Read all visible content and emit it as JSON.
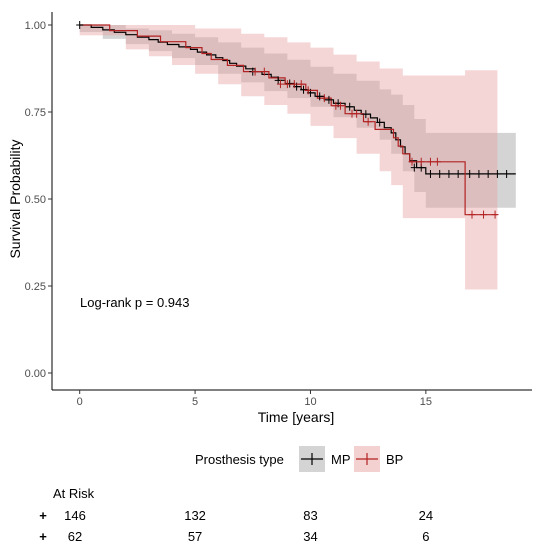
{
  "chart_data": {
    "type": "line",
    "subtype": "kaplan-meier",
    "xlabel": "Time [years]",
    "ylabel": "Survival Probability",
    "xlim": [
      -1.2,
      19.6
    ],
    "ylim": [
      0,
      1.0
    ],
    "x_ticks": [
      0,
      5,
      10,
      15
    ],
    "y_ticks": [
      0.0,
      0.25,
      0.5,
      0.75,
      1.0
    ],
    "y_tick_labels": [
      "0.00",
      "0.25",
      "0.50",
      "0.75",
      "1.00"
    ],
    "grid": false,
    "annotation": "Log-rank p = 0.943",
    "legend": {
      "title": "Prosthesis type",
      "position": "bottom",
      "entries": [
        {
          "label": "MP",
          "color": "#000000",
          "band_color": "#a9a9a9"
        },
        {
          "label": "BP",
          "color": "#b22222",
          "band_color": "#e9a3a3"
        }
      ]
    },
    "series": [
      {
        "name": "MP",
        "color": "#000000",
        "band_color": "#a9a9a9",
        "steps": [
          [
            0,
            1.0
          ],
          [
            0.5,
            0.993
          ],
          [
            1.0,
            0.986
          ],
          [
            1.5,
            0.979
          ],
          [
            2.0,
            0.972
          ],
          [
            2.5,
            0.965
          ],
          [
            3.0,
            0.958
          ],
          [
            3.4,
            0.951
          ],
          [
            3.8,
            0.944
          ],
          [
            4.3,
            0.937
          ],
          [
            4.8,
            0.93
          ],
          [
            5.1,
            0.922
          ],
          [
            5.5,
            0.914
          ],
          [
            5.9,
            0.906
          ],
          [
            6.2,
            0.898
          ],
          [
            6.5,
            0.89
          ],
          [
            6.8,
            0.882
          ],
          [
            7.2,
            0.874
          ],
          [
            7.6,
            0.866
          ],
          [
            7.9,
            0.858
          ],
          [
            8.3,
            0.85
          ],
          [
            8.6,
            0.841
          ],
          [
            8.9,
            0.832
          ],
          [
            9.3,
            0.823
          ],
          [
            9.6,
            0.814
          ],
          [
            9.9,
            0.805
          ],
          [
            10.2,
            0.795
          ],
          [
            10.6,
            0.785
          ],
          [
            11.0,
            0.775
          ],
          [
            11.5,
            0.765
          ],
          [
            11.9,
            0.755
          ],
          [
            12.2,
            0.744
          ],
          [
            12.6,
            0.733
          ],
          [
            12.9,
            0.72
          ],
          [
            13.2,
            0.705
          ],
          [
            13.5,
            0.69
          ],
          [
            13.7,
            0.67
          ],
          [
            13.9,
            0.65
          ],
          [
            14.1,
            0.63
          ],
          [
            14.3,
            0.61
          ],
          [
            14.6,
            0.59
          ],
          [
            15.0,
            0.572
          ],
          [
            18.9,
            0.572
          ]
        ],
        "upper": [
          [
            0,
            1.0
          ],
          [
            1.0,
            1.0
          ],
          [
            2.0,
            0.99
          ],
          [
            3.0,
            0.985
          ],
          [
            4.0,
            0.975
          ],
          [
            5.0,
            0.965
          ],
          [
            6.0,
            0.95
          ],
          [
            7.0,
            0.935
          ],
          [
            8.0,
            0.918
          ],
          [
            9.0,
            0.9
          ],
          [
            10.0,
            0.88
          ],
          [
            11.0,
            0.86
          ],
          [
            12.0,
            0.84
          ],
          [
            13.0,
            0.815
          ],
          [
            13.5,
            0.8
          ],
          [
            14.0,
            0.77
          ],
          [
            14.5,
            0.73
          ],
          [
            15.0,
            0.69
          ],
          [
            18.9,
            0.69
          ]
        ],
        "lower": [
          [
            0,
            0.98
          ],
          [
            1.0,
            0.96
          ],
          [
            2.0,
            0.945
          ],
          [
            3.0,
            0.925
          ],
          [
            4.0,
            0.905
          ],
          [
            5.0,
            0.885
          ],
          [
            6.0,
            0.86
          ],
          [
            7.0,
            0.835
          ],
          [
            8.0,
            0.81
          ],
          [
            9.0,
            0.79
          ],
          [
            10.0,
            0.765
          ],
          [
            11.0,
            0.735
          ],
          [
            12.0,
            0.705
          ],
          [
            13.0,
            0.67
          ],
          [
            13.5,
            0.63
          ],
          [
            14.0,
            0.58
          ],
          [
            14.5,
            0.52
          ],
          [
            15.0,
            0.475
          ],
          [
            18.9,
            0.475
          ]
        ],
        "censored": [
          [
            0,
            1.0
          ],
          [
            7.5,
            0.866
          ],
          [
            8.6,
            0.841
          ],
          [
            9.1,
            0.832
          ],
          [
            9.4,
            0.823
          ],
          [
            9.7,
            0.814
          ],
          [
            10.0,
            0.805
          ],
          [
            10.4,
            0.795
          ],
          [
            10.8,
            0.785
          ],
          [
            11.2,
            0.775
          ],
          [
            11.7,
            0.765
          ],
          [
            12.4,
            0.744
          ],
          [
            13.0,
            0.72
          ],
          [
            14.5,
            0.59
          ],
          [
            14.8,
            0.59
          ],
          [
            15.2,
            0.572
          ],
          [
            15.6,
            0.572
          ],
          [
            16.0,
            0.572
          ],
          [
            16.4,
            0.572
          ],
          [
            16.9,
            0.572
          ],
          [
            17.3,
            0.572
          ],
          [
            17.7,
            0.572
          ],
          [
            18.1,
            0.572
          ],
          [
            18.5,
            0.572
          ]
        ]
      },
      {
        "name": "BP",
        "color": "#b22222",
        "band_color": "#e9a3a3",
        "steps": [
          [
            0,
            1.0
          ],
          [
            1.3,
            0.984
          ],
          [
            2.5,
            0.968
          ],
          [
            3.5,
            0.952
          ],
          [
            4.6,
            0.935
          ],
          [
            5.3,
            0.918
          ],
          [
            5.7,
            0.901
          ],
          [
            6.4,
            0.884
          ],
          [
            7.1,
            0.866
          ],
          [
            8.2,
            0.848
          ],
          [
            8.9,
            0.83
          ],
          [
            9.8,
            0.812
          ],
          [
            10.3,
            0.79
          ],
          [
            10.9,
            0.768
          ],
          [
            11.5,
            0.745
          ],
          [
            12.3,
            0.722
          ],
          [
            12.8,
            0.7
          ],
          [
            13.6,
            0.676
          ],
          [
            13.8,
            0.652
          ],
          [
            14.0,
            0.63
          ],
          [
            14.3,
            0.607
          ],
          [
            16.7,
            0.455
          ],
          [
            18.1,
            0.455
          ]
        ],
        "upper": [
          [
            0,
            1.0
          ],
          [
            3.0,
            1.0
          ],
          [
            5.0,
            0.99
          ],
          [
            7.0,
            0.975
          ],
          [
            8.0,
            0.965
          ],
          [
            9.0,
            0.95
          ],
          [
            10.0,
            0.935
          ],
          [
            11.0,
            0.915
          ],
          [
            12.0,
            0.895
          ],
          [
            13.0,
            0.875
          ],
          [
            14.0,
            0.855
          ],
          [
            15.0,
            0.855
          ],
          [
            16.6,
            0.855
          ],
          [
            16.7,
            0.87
          ],
          [
            18.1,
            0.87
          ]
        ],
        "lower": [
          [
            0,
            0.97
          ],
          [
            2.0,
            0.93
          ],
          [
            3.0,
            0.91
          ],
          [
            4.0,
            0.885
          ],
          [
            5.0,
            0.86
          ],
          [
            6.0,
            0.83
          ],
          [
            7.0,
            0.795
          ],
          [
            8.0,
            0.77
          ],
          [
            9.0,
            0.745
          ],
          [
            10.0,
            0.71
          ],
          [
            11.0,
            0.675
          ],
          [
            12.0,
            0.63
          ],
          [
            13.0,
            0.58
          ],
          [
            13.5,
            0.54
          ],
          [
            14.0,
            0.445
          ],
          [
            16.6,
            0.445
          ],
          [
            16.7,
            0.24
          ],
          [
            18.1,
            0.24
          ]
        ],
        "censored": [
          [
            7.6,
            0.866
          ],
          [
            8.0,
            0.866
          ],
          [
            8.7,
            0.83
          ],
          [
            9.0,
            0.83
          ],
          [
            9.3,
            0.83
          ],
          [
            9.6,
            0.83
          ],
          [
            9.9,
            0.812
          ],
          [
            10.6,
            0.79
          ],
          [
            11.1,
            0.768
          ],
          [
            11.3,
            0.768
          ],
          [
            11.8,
            0.745
          ],
          [
            12.0,
            0.745
          ],
          [
            12.5,
            0.722
          ],
          [
            14.4,
            0.607
          ],
          [
            14.8,
            0.607
          ],
          [
            15.2,
            0.607
          ],
          [
            15.5,
            0.607
          ],
          [
            17.0,
            0.455
          ],
          [
            17.5,
            0.455
          ],
          [
            18.0,
            0.455
          ]
        ]
      }
    ]
  },
  "at_risk": {
    "title": "At Risk",
    "rows": [
      {
        "name": "MP",
        "color": "#000000",
        "symbol": "+",
        "values": [
          "146",
          "132",
          "83",
          "24"
        ]
      },
      {
        "name": "BP",
        "color": "#b22222",
        "symbol": "+",
        "values": [
          "62",
          "57",
          "34",
          "6"
        ]
      }
    ]
  }
}
